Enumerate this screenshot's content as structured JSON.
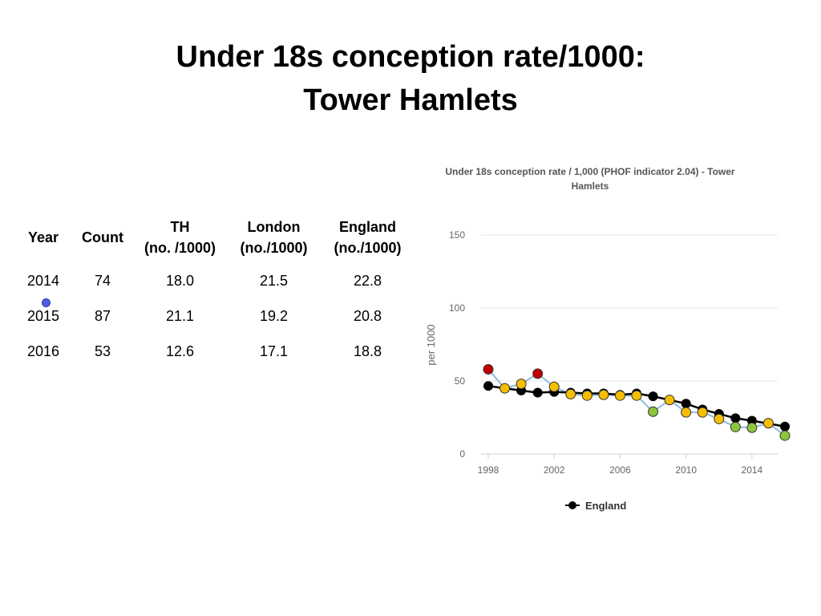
{
  "slide": {
    "title_line1": "Under 18s conception rate/1000:",
    "title_line2": "Tower Hamlets"
  },
  "table": {
    "headers": [
      {
        "line1": "Year",
        "line2": ""
      },
      {
        "line1": "Count",
        "line2": ""
      },
      {
        "line1": "TH",
        "line2": "(no. /1000)"
      },
      {
        "line1": "London",
        "line2": "(no./1000)"
      },
      {
        "line1": "England",
        "line2": "(no./1000)"
      }
    ],
    "rows": [
      [
        "2014",
        "74",
        "18.0",
        "21.5",
        "22.8"
      ],
      [
        "2015",
        "87",
        "21.1",
        "19.2",
        "20.8"
      ],
      [
        "2016",
        "53",
        "12.6",
        "17.1",
        "18.8"
      ]
    ]
  },
  "chart_data": {
    "type": "line",
    "title_line1": "Under 18s conception rate / 1,000 (PHOF indicator 2.04) - Tower",
    "title_line2": "Hamlets",
    "ylabel": "per 1000",
    "xlabel": "",
    "ylim": [
      0,
      150
    ],
    "xlim": [
      1998,
      2016
    ],
    "yticks": [
      0,
      50,
      100,
      150
    ],
    "xticks": [
      1998,
      2002,
      2006,
      2010,
      2014
    ],
    "grid": true,
    "legend": {
      "position": "bottom",
      "items": [
        "England"
      ]
    },
    "x": [
      1998,
      1999,
      2000,
      2001,
      2002,
      2003,
      2004,
      2005,
      2006,
      2007,
      2008,
      2009,
      2010,
      2011,
      2012,
      2013,
      2014,
      2015,
      2016
    ],
    "series": [
      {
        "name": "England",
        "color": "#000000",
        "values": [
          46.6,
          45.0,
          43.5,
          42.0,
          42.5,
          42.0,
          41.5,
          41.5,
          40.5,
          41.5,
          39.5,
          37.0,
          34.5,
          30.5,
          27.5,
          24.5,
          22.8,
          20.8,
          18.8
        ]
      },
      {
        "name": "",
        "color": "#8fbcd8",
        "values": [
          58.0,
          45.0,
          48.0,
          55.0,
          46.0,
          41.0,
          40.0,
          40.5,
          40.0,
          40.0,
          29.0,
          37.0,
          28.5,
          28.5,
          24.0,
          18.5,
          18.0,
          21.1,
          12.6
        ],
        "point_colors": [
          "#c00000",
          "#f7be00",
          "#f7be00",
          "#c00000",
          "#f7be00",
          "#f7be00",
          "#f7be00",
          "#f7be00",
          "#f7be00",
          "#f7be00",
          "#8cc63f",
          "#f7be00",
          "#f7be00",
          "#f7be00",
          "#f7be00",
          "#8cc63f",
          "#8cc63f",
          "#f7be00",
          "#8cc63f"
        ]
      }
    ]
  }
}
